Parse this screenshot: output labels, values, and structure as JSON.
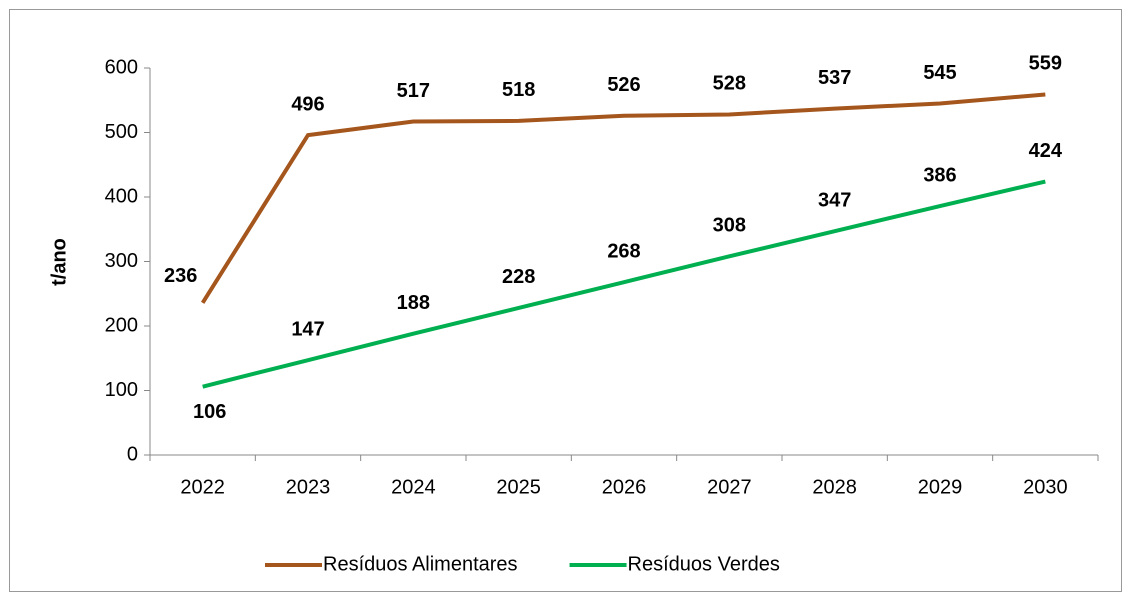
{
  "chart_data": {
    "type": "line",
    "categories": [
      "2022",
      "2023",
      "2024",
      "2025",
      "2026",
      "2027",
      "2028",
      "2029",
      "2030"
    ],
    "y_label": "t/ano",
    "series": [
      {
        "name": "Resíduos Alimentares",
        "color": "#a5561d",
        "values": [
          236,
          496,
          517,
          518,
          526,
          528,
          537,
          545,
          559
        ]
      },
      {
        "name": "Resíduos Verdes",
        "color": "#00b050",
        "values": [
          106,
          147,
          188,
          228,
          268,
          308,
          347,
          386,
          424
        ]
      }
    ],
    "ylim": [
      0,
      600
    ],
    "yticks": [
      0,
      100,
      200,
      300,
      400,
      500,
      600
    ],
    "legend": "bottom"
  }
}
